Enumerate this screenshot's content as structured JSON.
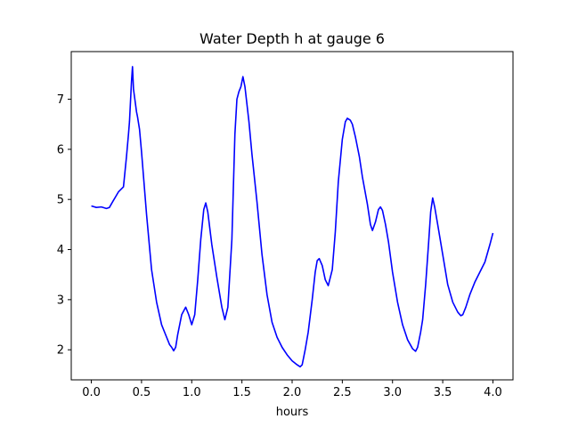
{
  "chart_data": {
    "type": "line",
    "title": "Water Depth h at gauge 6",
    "xlabel": "hours",
    "ylabel": "",
    "xlim": [
      -0.2,
      4.2
    ],
    "ylim": [
      1.4,
      7.95
    ],
    "x_ticks": [
      0.0,
      0.5,
      1.0,
      1.5,
      2.0,
      2.5,
      3.0,
      3.5,
      4.0
    ],
    "x_tick_labels": [
      "0.0",
      "0.5",
      "1.0",
      "1.5",
      "2.0",
      "2.5",
      "3.0",
      "3.5",
      "4.0"
    ],
    "y_ticks": [
      2,
      3,
      4,
      5,
      6,
      7
    ],
    "y_tick_labels": [
      "2",
      "3",
      "4",
      "5",
      "6",
      "7"
    ],
    "grid": false,
    "legend": false,
    "series": [
      {
        "color": "#0000ff",
        "x": [
          0.0,
          0.05,
          0.1,
          0.15,
          0.18,
          0.22,
          0.27,
          0.32,
          0.35,
          0.37,
          0.38,
          0.39,
          0.4,
          0.41,
          0.42,
          0.43,
          0.44,
          0.45,
          0.46,
          0.48,
          0.5,
          0.55,
          0.6,
          0.65,
          0.7,
          0.75,
          0.78,
          0.8,
          0.82,
          0.84,
          0.86,
          0.9,
          0.94,
          0.97,
          1.0,
          1.03,
          1.06,
          1.09,
          1.12,
          1.14,
          1.16,
          1.2,
          1.25,
          1.3,
          1.33,
          1.36,
          1.4,
          1.43,
          1.45,
          1.47,
          1.49,
          1.5,
          1.51,
          1.53,
          1.55,
          1.57,
          1.6,
          1.65,
          1.7,
          1.75,
          1.8,
          1.85,
          1.9,
          1.95,
          2.0,
          2.05,
          2.08,
          2.1,
          2.13,
          2.16,
          2.2,
          2.23,
          2.25,
          2.27,
          2.3,
          2.33,
          2.36,
          2.4,
          2.43,
          2.46,
          2.5,
          2.53,
          2.55,
          2.58,
          2.6,
          2.63,
          2.67,
          2.7,
          2.75,
          2.78,
          2.8,
          2.83,
          2.86,
          2.88,
          2.9,
          2.93,
          2.96,
          3.0,
          3.05,
          3.1,
          3.15,
          3.2,
          3.23,
          3.25,
          3.28,
          3.3,
          3.33,
          3.36,
          3.38,
          3.4,
          3.42,
          3.45,
          3.5,
          3.55,
          3.6,
          3.65,
          3.68,
          3.7,
          3.73,
          3.77,
          3.82,
          3.87,
          3.92,
          3.97,
          4.0
        ],
        "y": [
          4.87,
          4.84,
          4.85,
          4.82,
          4.84,
          4.98,
          5.15,
          5.25,
          5.85,
          6.3,
          6.55,
          6.95,
          7.35,
          7.65,
          7.2,
          7.05,
          6.9,
          6.75,
          6.65,
          6.4,
          5.95,
          4.7,
          3.6,
          2.95,
          2.5,
          2.25,
          2.1,
          2.05,
          1.98,
          2.05,
          2.3,
          2.7,
          2.85,
          2.7,
          2.5,
          2.7,
          3.4,
          4.2,
          4.8,
          4.93,
          4.75,
          4.1,
          3.45,
          2.85,
          2.6,
          2.85,
          4.2,
          6.3,
          7.0,
          7.15,
          7.25,
          7.35,
          7.45,
          7.25,
          6.9,
          6.55,
          5.9,
          4.95,
          3.9,
          3.1,
          2.55,
          2.25,
          2.05,
          1.9,
          1.78,
          1.7,
          1.66,
          1.7,
          2.0,
          2.35,
          3.0,
          3.55,
          3.78,
          3.82,
          3.68,
          3.4,
          3.28,
          3.6,
          4.35,
          5.35,
          6.2,
          6.55,
          6.62,
          6.58,
          6.5,
          6.25,
          5.85,
          5.45,
          4.9,
          4.5,
          4.38,
          4.55,
          4.8,
          4.85,
          4.78,
          4.5,
          4.15,
          3.55,
          2.95,
          2.5,
          2.2,
          2.02,
          1.97,
          2.05,
          2.35,
          2.6,
          3.3,
          4.15,
          4.75,
          5.03,
          4.85,
          4.5,
          3.9,
          3.3,
          2.95,
          2.75,
          2.68,
          2.7,
          2.85,
          3.1,
          3.35,
          3.55,
          3.75,
          4.1,
          4.33
        ]
      }
    ]
  }
}
